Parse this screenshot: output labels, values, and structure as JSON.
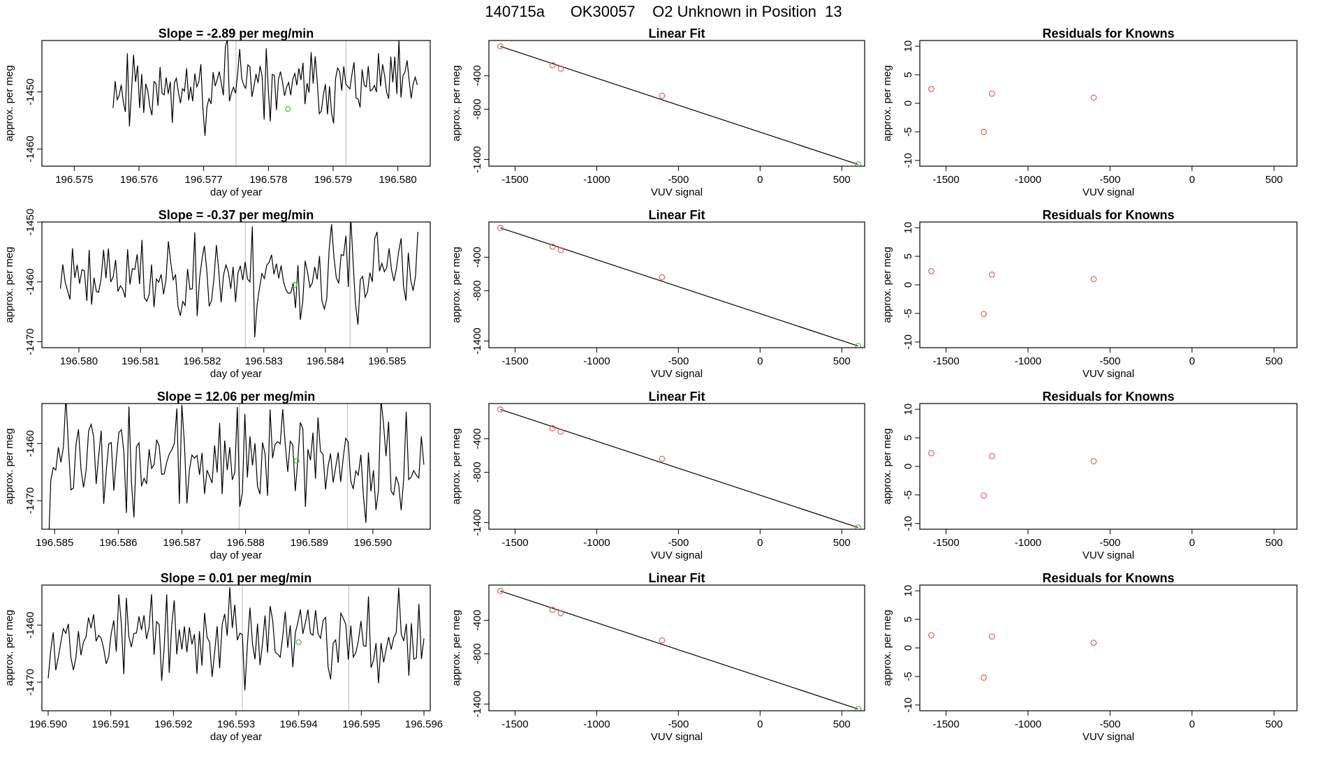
{
  "figure": {
    "title": "140715a      OK30057    O2 Unknown in Position  13"
  },
  "chart_data": [
    {
      "type": "line",
      "row": 0,
      "title": "Slope =  -2.89  per meg/min",
      "xlabel": "day of year",
      "ylabel": "approx. per meg",
      "xlim": [
        196.5745,
        196.5805
      ],
      "ylim": [
        -1463,
        -1441
      ],
      "xticks": [
        196.575,
        196.576,
        196.577,
        196.578,
        196.579,
        196.58
      ],
      "xtick_labels": [
        "196.575",
        "196.576",
        "196.577",
        "196.578",
        "196.579",
        "196.580"
      ],
      "yticks": [
        -1450,
        -1460
      ],
      "ytick_labels": [
        "-1450",
        "-1460"
      ],
      "vlines": [
        196.5775,
        196.5792
      ],
      "green_point": {
        "x": 196.5783,
        "y": -1453
      },
      "series": {
        "x_start": 196.5756,
        "x_end": 196.5803,
        "center": -1449,
        "amp": 3,
        "seed": 11
      }
    },
    {
      "type": "line",
      "row": 1,
      "title": "Slope =  -0.37  per meg/min",
      "xlabel": "day of year",
      "ylabel": "approx. per meg",
      "xlim": [
        196.5794,
        196.5857
      ],
      "ylim": [
        -1471,
        -1450
      ],
      "xticks": [
        196.58,
        196.581,
        196.582,
        196.583,
        196.584,
        196.585
      ],
      "xtick_labels": [
        "196.580",
        "196.581",
        "196.582",
        "196.583",
        "196.584",
        "196.585"
      ],
      "yticks": [
        -1450,
        -1460,
        -1470
      ],
      "ytick_labels": [
        "-1450",
        "-1460",
        "-1470"
      ],
      "vlines": [
        196.5827,
        196.5844
      ],
      "green_point": {
        "x": 196.5835,
        "y": -1460.5
      },
      "series": {
        "x_start": 196.5797,
        "x_end": 196.5855,
        "center": -1459,
        "amp": 3.3,
        "seed": 23
      }
    },
    {
      "type": "line",
      "row": 2,
      "title": "Slope =  12.06  per meg/min",
      "xlabel": "day of year",
      "ylabel": "approx. per meg",
      "xlim": [
        196.5848,
        196.5909
      ],
      "ylim": [
        -1475,
        -1453
      ],
      "xticks": [
        196.585,
        196.586,
        196.587,
        196.588,
        196.589,
        196.59
      ],
      "xtick_labels": [
        "196.585",
        "196.586",
        "196.587",
        "196.588",
        "196.589",
        "196.590"
      ],
      "yticks": [
        -1460,
        -1470
      ],
      "ytick_labels": [
        "-1460",
        "-1470"
      ],
      "vlines": [
        196.5879,
        196.5896
      ],
      "green_point": {
        "x": 196.5888,
        "y": -1463
      },
      "series": {
        "x_start": 196.5849,
        "x_end": 196.5908,
        "center": -1463,
        "amp": 4.5,
        "seed": 37
      }
    },
    {
      "type": "line",
      "row": 3,
      "title": "Slope =  0.01  per meg/min",
      "xlabel": "day of year",
      "ylabel": "approx. per meg",
      "xlim": [
        196.5899,
        196.5961
      ],
      "ylim": [
        -1475,
        -1453
      ],
      "xticks": [
        196.59,
        196.591,
        196.592,
        196.593,
        196.594,
        196.595,
        196.596
      ],
      "xtick_labels": [
        "196.590",
        "196.591",
        "196.592",
        "196.593",
        "196.594",
        "196.595",
        "196.596"
      ],
      "yticks": [
        -1460,
        -1470
      ],
      "ytick_labels": [
        "-1460",
        "-1470"
      ],
      "vlines": [
        196.5931,
        196.5948
      ],
      "green_point": {
        "x": 196.594,
        "y": -1463
      },
      "series": {
        "x_start": 196.59,
        "x_end": 196.596,
        "center": -1462,
        "amp": 3.5,
        "seed": 53
      }
    },
    {
      "type": "scatter",
      "row": 0,
      "title": "Linear Fit",
      "xlabel": "VUV signal",
      "ylabel": "approx. per meg",
      "xlim": [
        -1660,
        640
      ],
      "ylim": [
        -1480,
        20
      ],
      "xticks": [
        -1500,
        -1000,
        -500,
        0,
        500
      ],
      "xtick_labels": [
        "-1500",
        "-1000",
        "-500",
        "0",
        "500"
      ],
      "yticks": [
        -400,
        -800,
        -1400
      ],
      "ytick_labels": [
        "-400",
        "-800",
        "-1400"
      ],
      "points": [
        {
          "x": -1590,
          "y": -50
        },
        {
          "x": -1270,
          "y": -275
        },
        {
          "x": -1220,
          "y": -315
        },
        {
          "x": -600,
          "y": -640
        }
      ],
      "unknown": {
        "x": 600,
        "y": -1460
      },
      "line": [
        [
          -1590,
          -50
        ],
        [
          600,
          -1460
        ]
      ]
    },
    {
      "type": "scatter",
      "row": 1,
      "title": "Linear Fit",
      "xlabel": "VUV signal",
      "ylabel": "approx. per meg",
      "xlim": [
        -1660,
        640
      ],
      "ylim": [
        -1480,
        20
      ],
      "xticks": [
        -1500,
        -1000,
        -500,
        0,
        500
      ],
      "xtick_labels": [
        "-1500",
        "-1000",
        "-500",
        "0",
        "500"
      ],
      "yticks": [
        -400,
        -800,
        -1400
      ],
      "ytick_labels": [
        "-400",
        "-800",
        "-1400"
      ],
      "points": [
        {
          "x": -1590,
          "y": -50
        },
        {
          "x": -1270,
          "y": -275
        },
        {
          "x": -1220,
          "y": -315
        },
        {
          "x": -600,
          "y": -640
        }
      ],
      "unknown": {
        "x": 600,
        "y": -1460
      },
      "line": [
        [
          -1590,
          -50
        ],
        [
          600,
          -1460
        ]
      ]
    },
    {
      "type": "scatter",
      "row": 2,
      "title": "Linear Fit",
      "xlabel": "VUV signal",
      "ylabel": "approx. per meg",
      "xlim": [
        -1660,
        640
      ],
      "ylim": [
        -1480,
        20
      ],
      "xticks": [
        -1500,
        -1000,
        -500,
        0,
        500
      ],
      "xtick_labels": [
        "-1500",
        "-1000",
        "-500",
        "0",
        "500"
      ],
      "yticks": [
        -400,
        -800,
        -1400
      ],
      "ytick_labels": [
        "-400",
        "-800",
        "-1400"
      ],
      "points": [
        {
          "x": -1590,
          "y": -50
        },
        {
          "x": -1270,
          "y": -275
        },
        {
          "x": -1220,
          "y": -315
        },
        {
          "x": -600,
          "y": -640
        }
      ],
      "unknown": {
        "x": 600,
        "y": -1460
      },
      "line": [
        [
          -1590,
          -50
        ],
        [
          600,
          -1460
        ]
      ]
    },
    {
      "type": "scatter",
      "row": 3,
      "title": "Linear Fit",
      "xlabel": "VUV signal",
      "ylabel": "approx. per meg",
      "xlim": [
        -1660,
        640
      ],
      "ylim": [
        -1480,
        20
      ],
      "xticks": [
        -1500,
        -1000,
        -500,
        0,
        500
      ],
      "xtick_labels": [
        "-1500",
        "-1000",
        "-500",
        "0",
        "500"
      ],
      "yticks": [
        -400,
        -800,
        -1400
      ],
      "ytick_labels": [
        "-400",
        "-800",
        "-1400"
      ],
      "points": [
        {
          "x": -1590,
          "y": -50
        },
        {
          "x": -1270,
          "y": -275
        },
        {
          "x": -1220,
          "y": -315
        },
        {
          "x": -600,
          "y": -640
        }
      ],
      "unknown": {
        "x": 600,
        "y": -1460
      },
      "line": [
        [
          -1590,
          -50
        ],
        [
          600,
          -1460
        ]
      ]
    },
    {
      "type": "scatter",
      "row": 0,
      "title": "Residuals for Knowns",
      "xlabel": "VUV signal",
      "ylabel": "approx. per meg",
      "xlim": [
        -1660,
        640
      ],
      "ylim": [
        -11,
        11
      ],
      "xticks": [
        -1500,
        -1000,
        -500,
        0,
        500
      ],
      "xtick_labels": [
        "-1500",
        "-1000",
        "-500",
        "0",
        "500"
      ],
      "yticks": [
        10,
        5,
        0,
        -5,
        -10
      ],
      "ytick_labels": [
        "10",
        "5",
        "0",
        "-5",
        "-10"
      ],
      "points": [
        {
          "x": -1590,
          "y": 2.5
        },
        {
          "x": -1270,
          "y": -5
        },
        {
          "x": -1220,
          "y": 1.7
        },
        {
          "x": -600,
          "y": 1
        }
      ]
    },
    {
      "type": "scatter",
      "row": 1,
      "title": "Residuals for Knowns",
      "xlabel": "VUV signal",
      "ylabel": "approx. per meg",
      "xlim": [
        -1660,
        640
      ],
      "ylim": [
        -11,
        11
      ],
      "xticks": [
        -1500,
        -1000,
        -500,
        0,
        500
      ],
      "xtick_labels": [
        "-1500",
        "-1000",
        "-500",
        "0",
        "500"
      ],
      "yticks": [
        10,
        5,
        0,
        -5,
        -10
      ],
      "ytick_labels": [
        "10",
        "5",
        "0",
        "-5",
        "-10"
      ],
      "points": [
        {
          "x": -1590,
          "y": 2.4
        },
        {
          "x": -1270,
          "y": -5.1
        },
        {
          "x": -1220,
          "y": 1.8
        },
        {
          "x": -600,
          "y": 1
        }
      ]
    },
    {
      "type": "scatter",
      "row": 2,
      "title": "Residuals for Knowns",
      "xlabel": "VUV signal",
      "ylabel": "approx. per meg",
      "xlim": [
        -1660,
        640
      ],
      "ylim": [
        -11,
        11
      ],
      "xticks": [
        -1500,
        -1000,
        -500,
        0,
        500
      ],
      "xtick_labels": [
        "-1500",
        "-1000",
        "-500",
        "0",
        "500"
      ],
      "yticks": [
        10,
        5,
        0,
        -5,
        -10
      ],
      "ytick_labels": [
        "10",
        "5",
        "0",
        "-5",
        "-10"
      ],
      "points": [
        {
          "x": -1590,
          "y": 2.3
        },
        {
          "x": -1270,
          "y": -5.1
        },
        {
          "x": -1220,
          "y": 1.8
        },
        {
          "x": -600,
          "y": 0.9
        }
      ]
    },
    {
      "type": "scatter",
      "row": 3,
      "title": "Residuals for Knowns",
      "xlabel": "VUV signal",
      "ylabel": "approx. per meg",
      "xlim": [
        -1660,
        640
      ],
      "ylim": [
        -11,
        11
      ],
      "xticks": [
        -1500,
        -1000,
        -500,
        0,
        500
      ],
      "xtick_labels": [
        "-1500",
        "-1000",
        "-500",
        "0",
        "500"
      ],
      "yticks": [
        10,
        5,
        0,
        -5,
        -10
      ],
      "ytick_labels": [
        "10",
        "5",
        "0",
        "-5",
        "-10"
      ],
      "points": [
        {
          "x": -1590,
          "y": 2.2
        },
        {
          "x": -1270,
          "y": -5.2
        },
        {
          "x": -1220,
          "y": 2
        },
        {
          "x": -600,
          "y": 0.9
        }
      ]
    }
  ],
  "colors": {
    "known_point": "#e06060",
    "unknown_point": "#40c040",
    "line": "#000000",
    "vline": "#c8c8c8"
  }
}
